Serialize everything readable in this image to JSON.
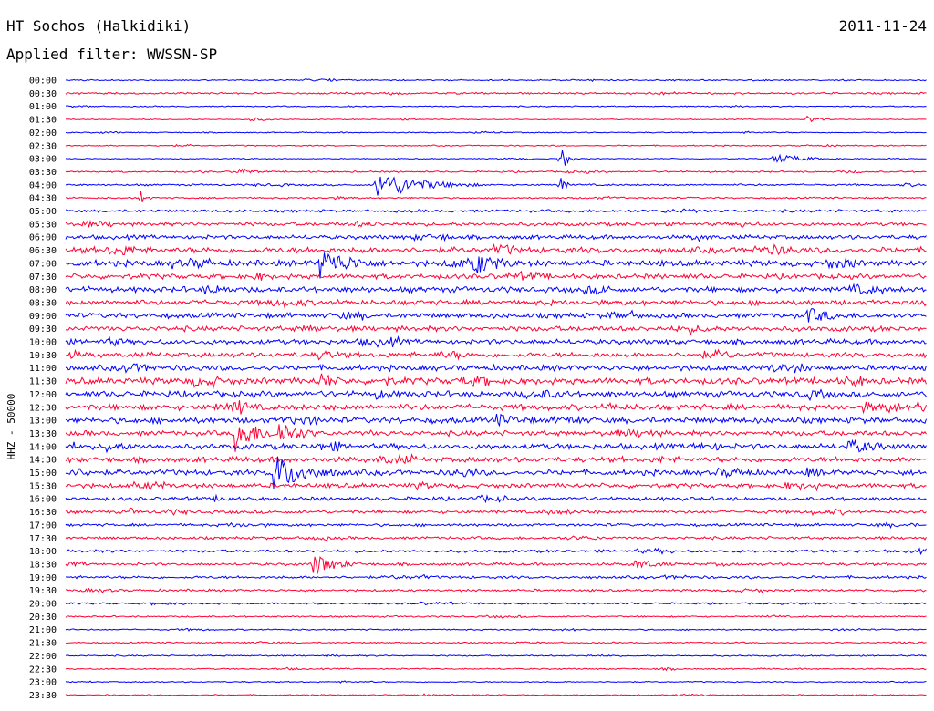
{
  "header": {
    "station": "HT Sochos (Halkidiki)",
    "date": "2011-11-24",
    "filter": "Applied filter: WWSSN-SP"
  },
  "chart_data": {
    "type": "line",
    "ylabel": "HHZ - 50000",
    "colors": {
      "odd_hour": "#0000ff",
      "half_hour": "#ff0033"
    },
    "rows": [
      "00:00",
      "00:30",
      "01:00",
      "01:30",
      "02:00",
      "02:30",
      "03:00",
      "03:30",
      "04:00",
      "04:30",
      "05:00",
      "05:30",
      "06:00",
      "06:30",
      "07:00",
      "07:30",
      "08:00",
      "08:30",
      "09:00",
      "09:30",
      "10:00",
      "10:30",
      "11:00",
      "11:30",
      "12:00",
      "12:30",
      "13:00",
      "13:30",
      "14:00",
      "14:30",
      "15:00",
      "15:30",
      "16:00",
      "16:30",
      "17:00",
      "17:30",
      "18:00",
      "18:30",
      "19:00",
      "19:30",
      "20:00",
      "20:30",
      "21:00",
      "21:30",
      "22:00",
      "22:30",
      "23:00",
      "23:30"
    ],
    "x_span_minutes": 30,
    "noise_level": [
      0.6,
      0.8,
      0.5,
      0.4,
      0.5,
      0.5,
      0.4,
      0.7,
      0.8,
      0.7,
      1.2,
      1.6,
      1.8,
      2.6,
      2.6,
      2.2,
      2.4,
      2.2,
      2.2,
      2.2,
      2.2,
      2.2,
      2.4,
      2.8,
      2.6,
      2.6,
      2.6,
      2.2,
      2.4,
      2.4,
      2.4,
      2.0,
      1.6,
      1.4,
      1.2,
      1.2,
      1.2,
      1.2,
      1.2,
      1.0,
      0.8,
      0.7,
      0.6,
      0.6,
      0.6,
      0.6,
      0.5,
      0.5
    ],
    "events": [
      {
        "row": 3,
        "minute": 6.4,
        "amp": 3,
        "dur": 0.5
      },
      {
        "row": 3,
        "minute": 25.8,
        "amp": 5,
        "dur": 0.4
      },
      {
        "row": 6,
        "minute": 17.2,
        "amp": 22,
        "dur": 0.2
      },
      {
        "row": 6,
        "minute": 24.6,
        "amp": 6,
        "dur": 1.0
      },
      {
        "row": 7,
        "minute": 6.0,
        "amp": 5,
        "dur": 0.5
      },
      {
        "row": 8,
        "minute": 10.8,
        "amp": 16,
        "dur": 1.5
      },
      {
        "row": 8,
        "minute": 17.2,
        "amp": 10,
        "dur": 0.2
      },
      {
        "row": 9,
        "minute": 2.6,
        "amp": 10,
        "dur": 0.2
      },
      {
        "row": 14,
        "minute": 8.8,
        "amp": 18,
        "dur": 1.2
      },
      {
        "row": 14,
        "minute": 14.2,
        "amp": 14,
        "dur": 1.0
      },
      {
        "row": 18,
        "minute": 25.8,
        "amp": 10,
        "dur": 1.0
      },
      {
        "row": 21,
        "minute": 8.8,
        "amp": 6,
        "dur": 1.0
      },
      {
        "row": 23,
        "minute": 8.8,
        "amp": 12,
        "dur": 0.6
      },
      {
        "row": 23,
        "minute": 11.0,
        "amp": 8,
        "dur": 0.6
      },
      {
        "row": 24,
        "minute": 10.8,
        "amp": 6,
        "dur": 1.2
      },
      {
        "row": 25,
        "minute": 5.9,
        "amp": 14,
        "dur": 0.4
      },
      {
        "row": 25,
        "minute": 29.6,
        "amp": 8,
        "dur": 0.6
      },
      {
        "row": 26,
        "minute": 15.0,
        "amp": 8,
        "dur": 1.2
      },
      {
        "row": 27,
        "minute": 5.9,
        "amp": 22,
        "dur": 0.8
      },
      {
        "row": 27,
        "minute": 7.4,
        "amp": 16,
        "dur": 0.8
      },
      {
        "row": 28,
        "minute": 1.4,
        "amp": 7,
        "dur": 1.0
      },
      {
        "row": 28,
        "minute": 27.2,
        "amp": 8,
        "dur": 1.6
      },
      {
        "row": 30,
        "minute": 7.2,
        "amp": 22,
        "dur": 1.2
      },
      {
        "row": 30,
        "minute": 25.8,
        "amp": 6,
        "dur": 1.0
      },
      {
        "row": 33,
        "minute": 2.2,
        "amp": 6,
        "dur": 0.3
      },
      {
        "row": 37,
        "minute": 8.6,
        "amp": 14,
        "dur": 0.8
      },
      {
        "row": 37,
        "minute": 19.8,
        "amp": 6,
        "dur": 1.0
      }
    ]
  }
}
